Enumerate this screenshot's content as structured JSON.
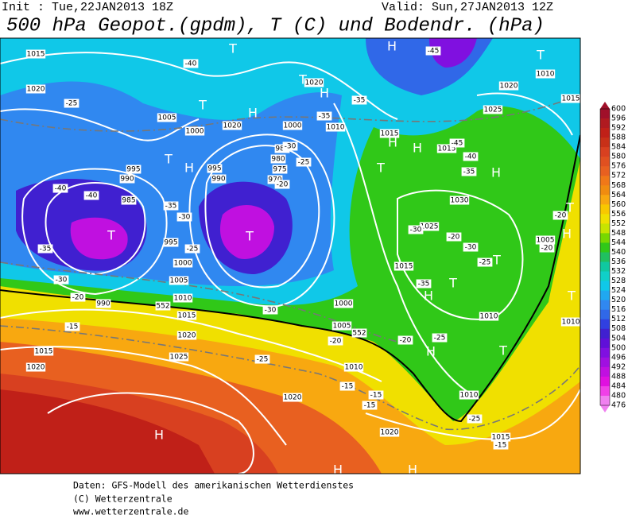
{
  "header": {
    "init": "Init : Tue,22JAN2013 18Z",
    "valid": "Valid: Sun,27JAN2013 12Z",
    "title": "500 hPa Geopot.(gpdm), T (C) und Bodendr. (hPa)"
  },
  "map": {
    "labels": [
      "1015",
      "1020",
      "1005",
      "1000",
      "1020",
      "1020",
      "1000",
      "1010",
      "985",
      "980",
      "975",
      "970",
      "995",
      "990",
      "995",
      "990",
      "985",
      "1000",
      "1005",
      "1010",
      "1015",
      "1020",
      "1025",
      "1015",
      "1020",
      "990",
      "995",
      "1000",
      "1005",
      "1010",
      "1020",
      "1020",
      "1015",
      "1010",
      "1010",
      "1015",
      "1025",
      "1030",
      "1020",
      "1025",
      "1010",
      "1015",
      "1005",
      "1010",
      "1015",
      "1015",
      "-40",
      "-45",
      "-25",
      "-35",
      "-35",
      "-40",
      "-40",
      "-35",
      "-30",
      "-35",
      "-30",
      "-20",
      "-15",
      "-25",
      "-30",
      "-20",
      "-20",
      "-25",
      "-25",
      "-15",
      "-15",
      "-15",
      "-25",
      "-15",
      "-20",
      "-20",
      "-30",
      "-20",
      "-30",
      "-25",
      "-35",
      "-45",
      "-40",
      "-35",
      "-30",
      "-25",
      "-20",
      "552",
      "552"
    ],
    "highs_lows": [
      "T",
      "T",
      "T",
      "H",
      "T",
      "H",
      "H",
      "H",
      "H",
      "T",
      "H",
      "T",
      "T",
      "H",
      "T",
      "T",
      "H",
      "H",
      "T",
      "T",
      "H",
      "H",
      "H",
      "T",
      "T",
      "H"
    ]
  },
  "colorbar": {
    "labels": [
      "600",
      "596",
      "592",
      "588",
      "584",
      "580",
      "576",
      "572",
      "568",
      "564",
      "560",
      "556",
      "552",
      "548",
      "544",
      "540",
      "536",
      "532",
      "528",
      "524",
      "520",
      "516",
      "512",
      "508",
      "504",
      "500",
      "496",
      "492",
      "488",
      "484",
      "480",
      "476"
    ],
    "colors": [
      "#a0102a",
      "#b01a20",
      "#c02018",
      "#c83018",
      "#d84020",
      "#e05020",
      "#e86020",
      "#f07818",
      "#f08c10",
      "#f8a810",
      "#f8c800",
      "#f0e000",
      "#c8e400",
      "#78d800",
      "#30c818",
      "#20c060",
      "#10c8a0",
      "#10d0c8",
      "#10c8e8",
      "#20a8f0",
      "#3088f0",
      "#3068e8",
      "#3040e0",
      "#4020d0",
      "#6010d8",
      "#8010e0",
      "#a010e0",
      "#c010e0",
      "#e010e0",
      "#f040e8",
      "#f080f0"
    ]
  },
  "footer": {
    "lines": [
      "Daten: GFS-Modell des amerikanischen Wetterdienstes",
      "(C) Wetterzentrale",
      "www.wetterzentrale.de"
    ]
  }
}
